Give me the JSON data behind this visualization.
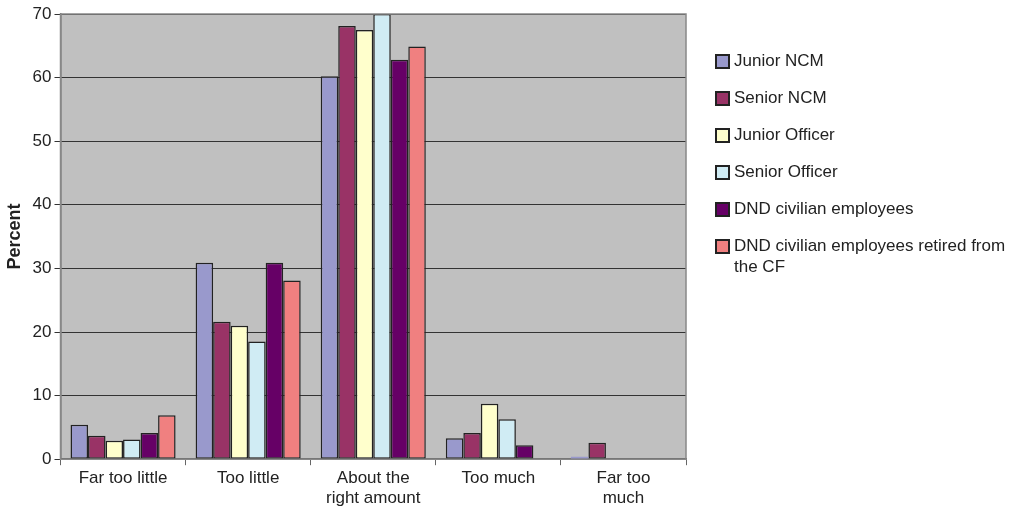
{
  "chart_data": {
    "type": "bar",
    "ylabel": "Percent",
    "categories": [
      "Far too little",
      "Too little",
      "About the right amount",
      "Too much",
      "Far too much"
    ],
    "series": [
      {
        "name": "Junior NCM",
        "color": "#9999cc",
        "values": [
          5.4,
          30.9,
          60.2,
          3.3,
          0.4
        ]
      },
      {
        "name": "Senior NCM",
        "color": "#993366",
        "values": [
          3.7,
          21.6,
          68.1,
          4.1,
          2.6
        ]
      },
      {
        "name": "Junior Officer",
        "color": "#ffffcc",
        "values": [
          2.9,
          21.0,
          67.5,
          8.7,
          null
        ]
      },
      {
        "name": "Senior Officer",
        "color": "#d0ecf4",
        "values": [
          3.1,
          18.5,
          70,
          6.3,
          null
        ]
      },
      {
        "name": "DND civilian employees",
        "color": "#660066",
        "values": [
          4.1,
          30.9,
          62.8,
          2.2,
          null
        ]
      },
      {
        "name": "DND civilian employees retired from the CF",
        "color": "#f08080",
        "values": [
          6.9,
          28.1,
          64.9,
          null,
          null
        ]
      }
    ],
    "ylim": [
      0,
      70
    ],
    "yticks": [
      0,
      10,
      20,
      30,
      40,
      50,
      60,
      70
    ],
    "grid": "y",
    "legend": "right"
  }
}
